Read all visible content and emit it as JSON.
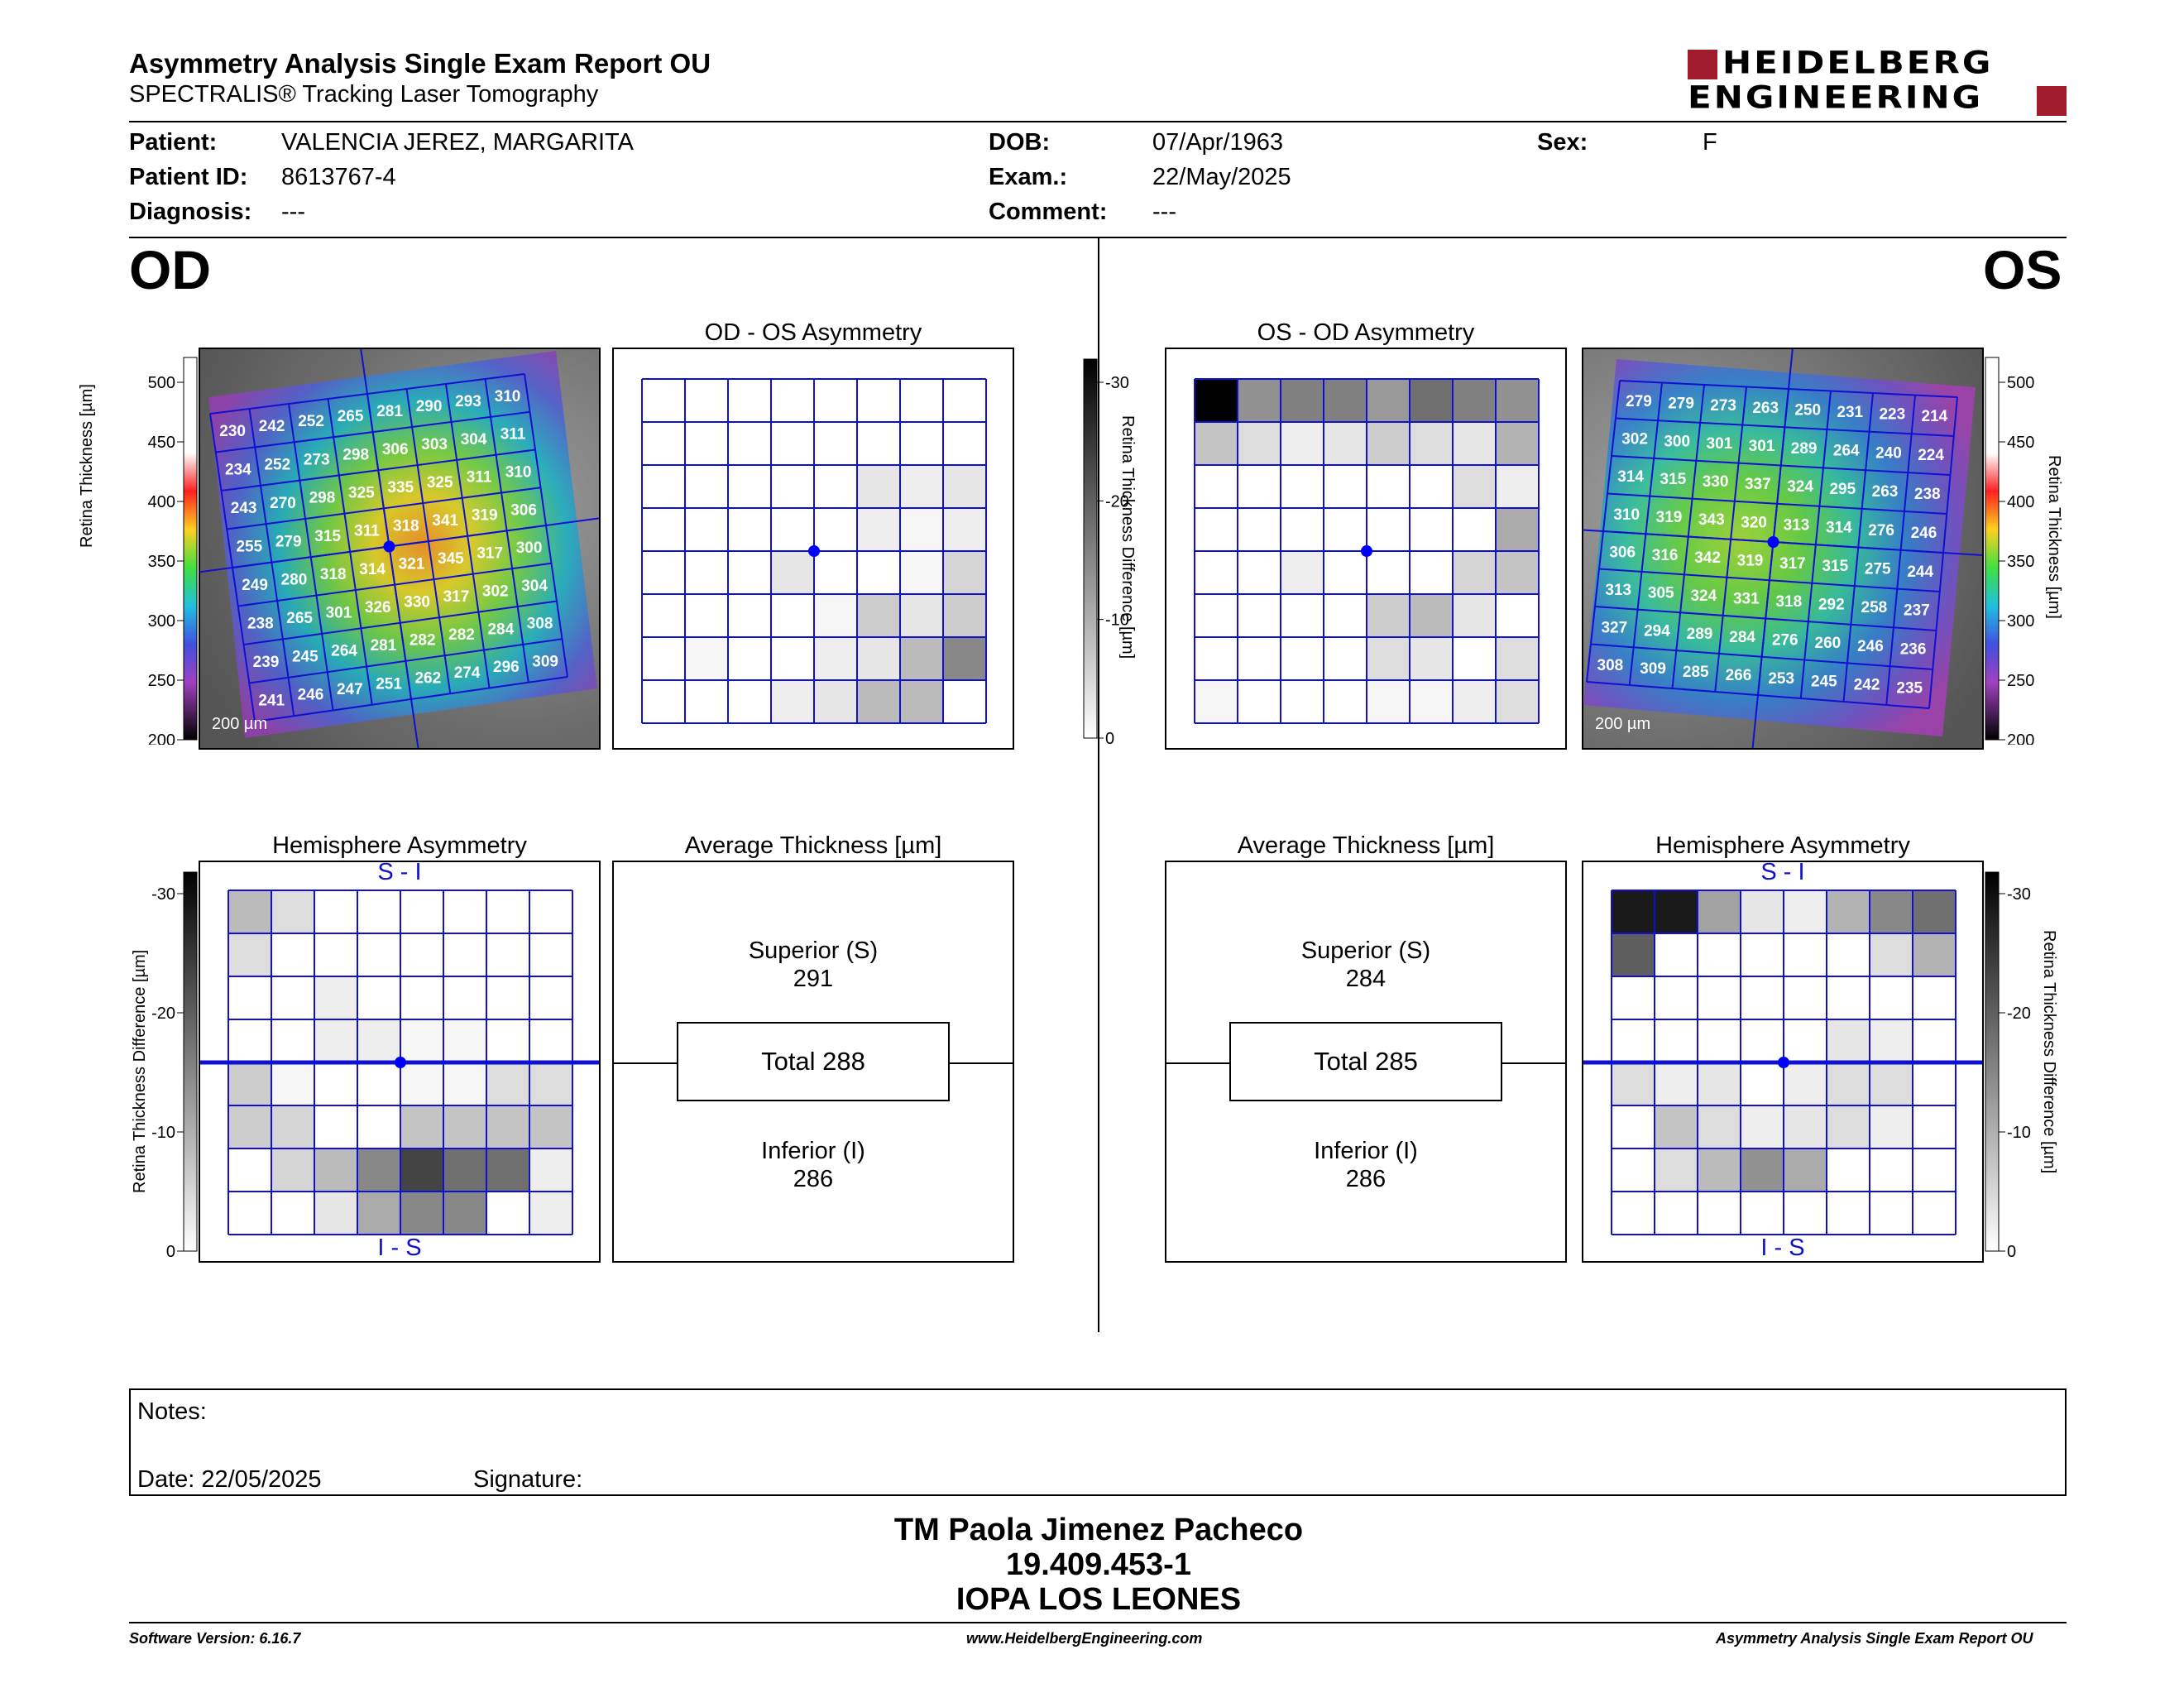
{
  "header": {
    "title": "Asymmetry Analysis Single Exam Report OU",
    "subtitle": "SPECTRALIS® Tracking Laser Tomography",
    "logo_line1": "HEIDELBERG",
    "logo_line2": "ENGINEERING",
    "logo_color": "#a01c2c"
  },
  "patient": {
    "patient_label": "Patient:",
    "patient_value": "VALENCIA JEREZ, MARGARITA",
    "id_label": "Patient ID:",
    "id_value": "8613767-4",
    "diagnosis_label": "Diagnosis:",
    "diagnosis_value": "---",
    "dob_label": "DOB:",
    "dob_value": "07/Apr/1963",
    "exam_label": "Exam.:",
    "exam_value": "22/May/2025",
    "comment_label": "Comment:",
    "comment_value": "---",
    "sex_label": "Sex:",
    "sex_value": "F"
  },
  "od": {
    "eye_label": "OD",
    "asym_title": "OD - OS Asymmetry",
    "hemi_title": "Hemisphere Asymmetry",
    "avg_title": "Average Thickness [µm]",
    "scale_bar": "200 µm",
    "thickness_grid": [
      [
        230,
        242,
        252,
        265,
        281,
        290,
        293,
        310
      ],
      [
        234,
        252,
        273,
        298,
        306,
        303,
        304,
        311
      ],
      [
        243,
        270,
        298,
        325,
        335,
        325,
        311,
        310
      ],
      [
        255,
        279,
        315,
        311,
        318,
        341,
        319,
        306
      ],
      [
        249,
        280,
        318,
        314,
        321,
        345,
        317,
        300
      ],
      [
        238,
        265,
        301,
        326,
        330,
        317,
        302,
        304
      ],
      [
        239,
        245,
        264,
        281,
        282,
        282,
        284,
        308
      ],
      [
        241,
        246,
        247,
        251,
        262,
        274,
        296,
        309
      ]
    ],
    "asym_grid": [
      [
        0,
        0,
        0,
        0,
        0,
        0,
        0,
        0
      ],
      [
        0,
        0,
        0,
        0,
        0,
        0,
        0,
        0
      ],
      [
        0,
        0,
        0,
        0,
        0,
        3,
        2,
        3
      ],
      [
        0,
        0,
        0,
        0,
        0,
        2,
        1,
        2
      ],
      [
        0,
        0,
        0,
        3,
        0,
        0,
        1,
        5
      ],
      [
        0,
        0,
        0,
        0,
        1,
        6,
        3,
        6
      ],
      [
        0,
        1,
        0,
        0,
        2,
        3,
        8,
        14
      ],
      [
        0,
        0,
        0,
        2,
        3,
        8,
        8,
        0
      ]
    ],
    "hemi_grid": [
      [
        8,
        4,
        0,
        0,
        0,
        0,
        0,
        0
      ],
      [
        4,
        0,
        0,
        0,
        0,
        0,
        0,
        0
      ],
      [
        0,
        0,
        2,
        0,
        0,
        0,
        0,
        0
      ],
      [
        0,
        0,
        2,
        2,
        1,
        1,
        0,
        0
      ],
      [
        6,
        1,
        0,
        0,
        1,
        1,
        4,
        4
      ],
      [
        6,
        5,
        0,
        0,
        7,
        7,
        7,
        7
      ],
      [
        0,
        5,
        8,
        14,
        22,
        17,
        17,
        2
      ],
      [
        0,
        0,
        3,
        10,
        14,
        14,
        0,
        2
      ]
    ],
    "hemi_top_label": "S - I",
    "hemi_bottom_label": "I - S",
    "superior_label": "Superior (S)",
    "superior_value": "291",
    "total_label": "Total 288",
    "inferior_label": "Inferior (I)",
    "inferior_value": "286"
  },
  "os": {
    "eye_label": "OS",
    "asym_title": "OS - OD Asymmetry",
    "hemi_title": "Hemisphere Asymmetry",
    "avg_title": "Average Thickness [µm]",
    "scale_bar": "200 µm",
    "thickness_grid": [
      [
        279,
        279,
        273,
        263,
        250,
        231,
        223,
        214
      ],
      [
        302,
        300,
        301,
        301,
        289,
        264,
        240,
        224
      ],
      [
        314,
        315,
        330,
        337,
        324,
        295,
        263,
        238
      ],
      [
        310,
        319,
        343,
        320,
        313,
        314,
        276,
        246
      ],
      [
        306,
        316,
        342,
        319,
        317,
        315,
        275,
        244
      ],
      [
        313,
        305,
        324,
        331,
        318,
        292,
        258,
        237
      ],
      [
        327,
        294,
        289,
        284,
        276,
        260,
        246,
        236
      ],
      [
        308,
        309,
        285,
        266,
        253,
        245,
        242,
        235
      ]
    ],
    "asym_grid": [
      [
        30,
        13,
        15,
        15,
        12,
        17,
        15,
        13
      ],
      [
        7,
        4,
        2,
        3,
        6,
        4,
        3,
        9
      ],
      [
        0,
        0,
        0,
        0,
        0,
        0,
        4,
        2
      ],
      [
        0,
        0,
        0,
        0,
        0,
        0,
        0,
        10
      ],
      [
        0,
        0,
        2,
        0,
        0,
        0,
        5,
        7
      ],
      [
        0,
        0,
        0,
        0,
        6,
        8,
        3,
        0
      ],
      [
        0,
        0,
        0,
        0,
        4,
        3,
        0,
        4
      ],
      [
        1,
        0,
        0,
        0,
        1,
        1,
        2,
        4
      ]
    ],
    "hemi_grid": [
      [
        27,
        27,
        11,
        3,
        2,
        9,
        14,
        17
      ],
      [
        19,
        0,
        0,
        0,
        0,
        0,
        4,
        9
      ],
      [
        0,
        0,
        0,
        0,
        0,
        0,
        0,
        0
      ],
      [
        0,
        0,
        0,
        0,
        0,
        3,
        2,
        0
      ],
      [
        4,
        2,
        3,
        0,
        2,
        4,
        4,
        0
      ],
      [
        0,
        7,
        4,
        2,
        3,
        4,
        2,
        0
      ],
      [
        0,
        4,
        8,
        13,
        10,
        0,
        0,
        0
      ],
      [
        0,
        0,
        0,
        0,
        0,
        0,
        0,
        0
      ]
    ],
    "hemi_top_label": "S - I",
    "hemi_bottom_label": "I - S",
    "superior_label": "Superior (S)",
    "superior_value": "284",
    "total_label": "Total 285",
    "inferior_label": "Inferior (I)",
    "inferior_value": "286"
  },
  "scales": {
    "thickness_axis_label": "Retina  Thickness [µm]",
    "thickness_ticks": [
      "500",
      "450",
      "400",
      "350",
      "300",
      "250",
      "200"
    ],
    "diff_axis_label": "Retina Thickness Difference [µm]",
    "diff_ticks": [
      "-30",
      "-20",
      "-10",
      "0"
    ]
  },
  "notes": {
    "notes_label": "Notes:",
    "date_label": "Date: 22/05/2025",
    "signature_label": "Signature:"
  },
  "footer": {
    "name": "TM Paola Jimenez Pacheco",
    "rut": "19.409.453-1",
    "institution": "IOPA LOS LEONES",
    "software": "Software Version: 6.16.7",
    "website": "www.HeidelbergEngineering.com",
    "report_name": "Asymmetry Analysis Single Exam Report OU"
  },
  "colors": {
    "grid_blue": "#1010d0",
    "fovea_blue": "#0000ff"
  }
}
